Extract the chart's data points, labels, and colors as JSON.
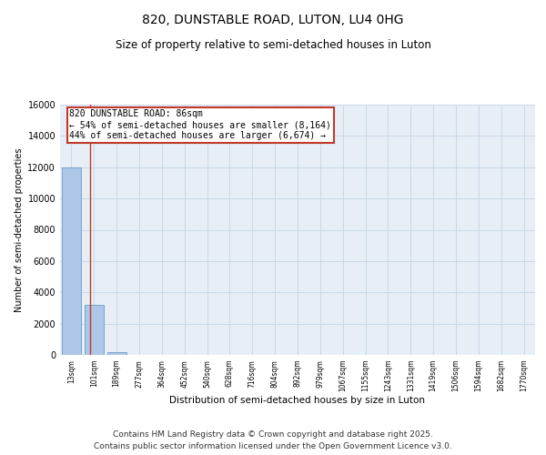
{
  "title_line1": "820, DUNSTABLE ROAD, LUTON, LU4 0HG",
  "title_line2": "Size of property relative to semi-detached houses in Luton",
  "xlabel": "Distribution of semi-detached houses by size in Luton",
  "ylabel": "Number of semi-detached properties",
  "bar_labels": [
    "13sqm",
    "101sqm",
    "189sqm",
    "277sqm",
    "364sqm",
    "452sqm",
    "540sqm",
    "628sqm",
    "716sqm",
    "804sqm",
    "892sqm",
    "979sqm",
    "1067sqm",
    "1155sqm",
    "1243sqm",
    "1331sqm",
    "1419sqm",
    "1506sqm",
    "1594sqm",
    "1682sqm",
    "1770sqm"
  ],
  "bar_values": [
    12000,
    3200,
    200,
    5,
    2,
    1,
    0,
    0,
    0,
    0,
    0,
    0,
    0,
    0,
    0,
    0,
    0,
    0,
    0,
    0,
    0
  ],
  "bar_color": "#aec6e8",
  "bar_edge_color": "#5a8fc0",
  "annotation_line1": "820 DUNSTABLE ROAD: 86sqm",
  "annotation_line2": "← 54% of semi-detached houses are smaller (8,164)",
  "annotation_line3": "44% of semi-detached houses are larger (6,674) →",
  "vline_color": "#c0392b",
  "annotation_box_color": "#c0392b",
  "ylim": [
    0,
    16000
  ],
  "yticks": [
    0,
    2000,
    4000,
    6000,
    8000,
    10000,
    12000,
    14000,
    16000
  ],
  "grid_color": "#c8d8e8",
  "bg_color": "#e8eef5",
  "footer_line1": "Contains HM Land Registry data © Crown copyright and database right 2025.",
  "footer_line2": "Contains public sector information licensed under the Open Government Licence v3.0.",
  "title_fontsize": 10,
  "subtitle_fontsize": 8.5,
  "footer_fontsize": 6.5,
  "annot_fontsize": 7,
  "ylabel_fontsize": 7,
  "xlabel_fontsize": 7.5,
  "ytick_fontsize": 7,
  "xtick_fontsize": 5.5
}
